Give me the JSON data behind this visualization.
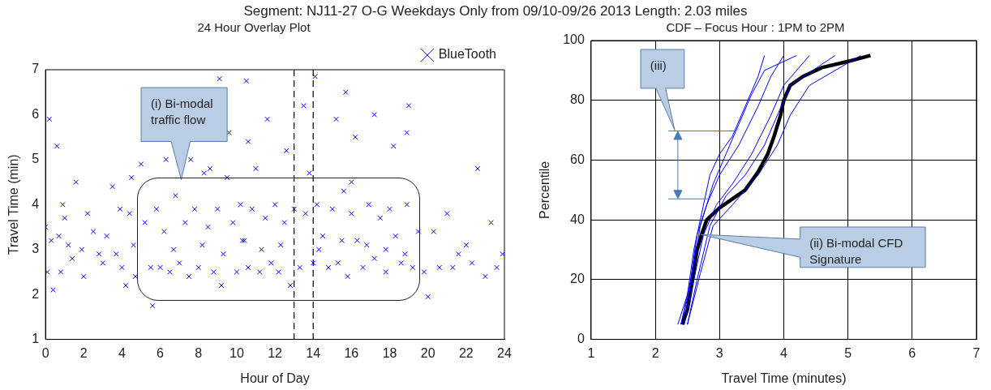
{
  "chart_data": [
    {
      "type": "scatter",
      "title": "24 Hour Overlay Plot",
      "xlabel": "Hour of Day",
      "ylabel": "Travel Time (min)",
      "annotations": [
        "Segment: NJ11-27  O-G   Weekdays Only from 09/10-09/26 2013   Length: 2.03 miles",
        "(i) Bi-modal traffic flow"
      ],
      "xlim": [
        0,
        24
      ],
      "xticks": [
        0,
        2,
        4,
        6,
        8,
        10,
        12,
        14,
        16,
        18,
        20,
        22,
        24
      ],
      "ylim": [
        1,
        7
      ],
      "yticks": [
        1,
        2,
        3,
        4,
        5,
        6,
        7
      ],
      "grid": false,
      "legend": "top right",
      "marker": "cross",
      "ref_lines": [
        {
          "axis": "x",
          "value": 13,
          "color": "#000000",
          "line_style": "dashed"
        },
        {
          "axis": "x",
          "value": 14,
          "color": "#000000",
          "line_style": "dashed"
        }
      ],
      "series": [
        {
          "name": "BlueTooth",
          "color": "#0000ff",
          "x": [
            0.0,
            0.1,
            0.2,
            0.3,
            0.4,
            0.6,
            0.7,
            0.8,
            0.9,
            1.0,
            1.2,
            1.4,
            1.6,
            1.9,
            2.0,
            2.2,
            2.5,
            2.8,
            3.0,
            3.2,
            3.5,
            3.7,
            3.9,
            4.0,
            4.2,
            4.4,
            4.5,
            4.6,
            4.7,
            5.0,
            5.2,
            5.5,
            5.6,
            5.8,
            6.0,
            6.2,
            6.5,
            6.8,
            7.0,
            7.3,
            7.5,
            7.8,
            8.0,
            8.3,
            8.5,
            8.8,
            9.0,
            9.2,
            9.5,
            9.8,
            10.0,
            10.2,
            10.4,
            10.6,
            10.8,
            11.0,
            11.2,
            11.5,
            11.8,
            12.0,
            12.2,
            12.5,
            12.8,
            13.0,
            13.3,
            13.6,
            13.8,
            14.0,
            14.2,
            14.5,
            14.8,
            15.0,
            15.3,
            15.6,
            15.8,
            16.0,
            16.3,
            16.6,
            16.9,
            17.2,
            17.5,
            17.8,
            18.0,
            18.3,
            18.6,
            18.9,
            19.2,
            19.5,
            19.8,
            20.0,
            20.3,
            20.6,
            21.0,
            21.3,
            21.6,
            22.0,
            22.3,
            22.6,
            23.0,
            23.3,
            23.6,
            23.9,
            6.3,
            7.6,
            8.6,
            9.6,
            10.6,
            11.6,
            12.6,
            13.5,
            15.2,
            16.2,
            17.2,
            18.2,
            19.0,
            6.7,
            8.2,
            9.3,
            10.3,
            11.3,
            12.3,
            14.3,
            15.5,
            16.8,
            17.8,
            18.8,
            9.1,
            10.5,
            14.1,
            15.7,
            16.0,
            18.9
          ],
          "values": [
            3.5,
            2.5,
            5.9,
            3.2,
            2.1,
            5.3,
            3.3,
            2.5,
            4.0,
            3.7,
            3.1,
            2.8,
            4.5,
            3.0,
            2.4,
            3.8,
            3.4,
            2.9,
            2.7,
            3.3,
            4.4,
            2.9,
            3.9,
            2.6,
            2.2,
            3.8,
            4.6,
            3.1,
            2.4,
            4.9,
            3.6,
            2.6,
            1.75,
            3.9,
            2.6,
            3.4,
            2.5,
            4.2,
            2.7,
            3.6,
            2.4,
            3.9,
            2.6,
            4.7,
            3.5,
            2.5,
            3.9,
            2.2,
            4.6,
            3.6,
            2.5,
            4.0,
            3.2,
            2.6,
            3.9,
            4.8,
            2.5,
            3.7,
            2.7,
            4.0,
            2.5,
            3.6,
            2.2,
            3.9,
            2.6,
            3.8,
            4.7,
            2.7,
            4.0,
            3.3,
            2.6,
            3.9,
            2.7,
            4.3,
            2.4,
            3.8,
            3.2,
            2.6,
            4.0,
            2.8,
            3.7,
            2.5,
            3.9,
            3.3,
            2.7,
            4.0,
            2.6,
            3.4,
            2.5,
            1.95,
            3.4,
            2.6,
            3.8,
            2.6,
            2.9,
            3.1,
            2.7,
            4.8,
            2.4,
            3.6,
            2.6,
            2.9,
            5.0,
            5.0,
            4.8,
            5.6,
            5.4,
            5.9,
            5.2,
            6.2,
            5.9,
            5.5,
            6.0,
            5.3,
            6.2,
            3.0,
            3.1,
            2.9,
            3.2,
            3.0,
            3.1,
            3.0,
            3.2,
            3.1,
            3.0,
            2.9,
            6.8,
            6.75,
            6.85,
            6.5,
            4.5,
            5.6
          ]
        }
      ]
    },
    {
      "type": "line",
      "title": "CDF – Focus Hour : 1PM to 2PM",
      "xlabel": "Travel Time (minutes)",
      "ylabel": "Percentile",
      "annotations": [
        "(iii)",
        "(ii) Bi-modal CFD Signature"
      ],
      "xlim": [
        1,
        7
      ],
      "xticks": [
        1,
        2,
        3,
        4,
        5,
        6,
        7
      ],
      "ylim": [
        0,
        100
      ],
      "yticks": [
        0,
        20,
        40,
        60,
        80,
        100
      ],
      "grid": true,
      "legend": false,
      "marker": "none",
      "series": [
        {
          "color": "#0000ff",
          "x": [
            2.35,
            2.5,
            2.6,
            2.7,
            2.85,
            3.0,
            3.2,
            3.4,
            3.6,
            3.7
          ],
          "values": [
            5,
            15,
            30,
            40,
            55,
            62,
            68,
            78,
            88,
            95
          ]
        },
        {
          "color": "#0000ff",
          "x": [
            2.4,
            2.55,
            2.65,
            2.8,
            3.0,
            3.3,
            3.6,
            3.8,
            4.0
          ],
          "values": [
            5,
            20,
            35,
            45,
            55,
            65,
            78,
            88,
            95
          ]
        },
        {
          "color": "#0000ff",
          "x": [
            2.45,
            2.6,
            2.75,
            2.95,
            3.2,
            3.5,
            3.8,
            4.0,
            4.4
          ],
          "values": [
            5,
            20,
            35,
            45,
            52,
            62,
            75,
            85,
            95
          ]
        },
        {
          "color": "#0000ff",
          "x": [
            2.5,
            2.65,
            2.85,
            3.1,
            3.4,
            3.7,
            3.9,
            4.1,
            4.8
          ],
          "values": [
            5,
            20,
            38,
            48,
            55,
            65,
            75,
            85,
            95
          ]
        },
        {
          "color": "#0000ff",
          "x": [
            2.5,
            2.7,
            2.9,
            3.2,
            3.6,
            3.9,
            4.1,
            4.4,
            5.2
          ],
          "values": [
            5,
            22,
            38,
            45,
            55,
            65,
            75,
            85,
            95
          ]
        },
        {
          "color": "#0000ff",
          "x": [
            2.4,
            2.55,
            2.7,
            2.9,
            3.1,
            3.3,
            3.5,
            3.7,
            4.2
          ],
          "values": [
            5,
            18,
            38,
            52,
            62,
            72,
            82,
            90,
            95
          ]
        },
        {
          "color": "#000000",
          "x": [
            2.42,
            2.5,
            2.58,
            2.65,
            2.72,
            2.8,
            3.0,
            3.2,
            3.4,
            3.6,
            3.75,
            3.85,
            3.95,
            4.0,
            4.1,
            4.3,
            4.6,
            5.0,
            5.35
          ],
          "values": [
            5,
            10,
            20,
            30,
            35,
            40,
            44,
            47,
            50,
            56,
            62,
            68,
            75,
            80,
            85,
            88,
            91,
            93,
            95
          ]
        }
      ]
    }
  ]
}
